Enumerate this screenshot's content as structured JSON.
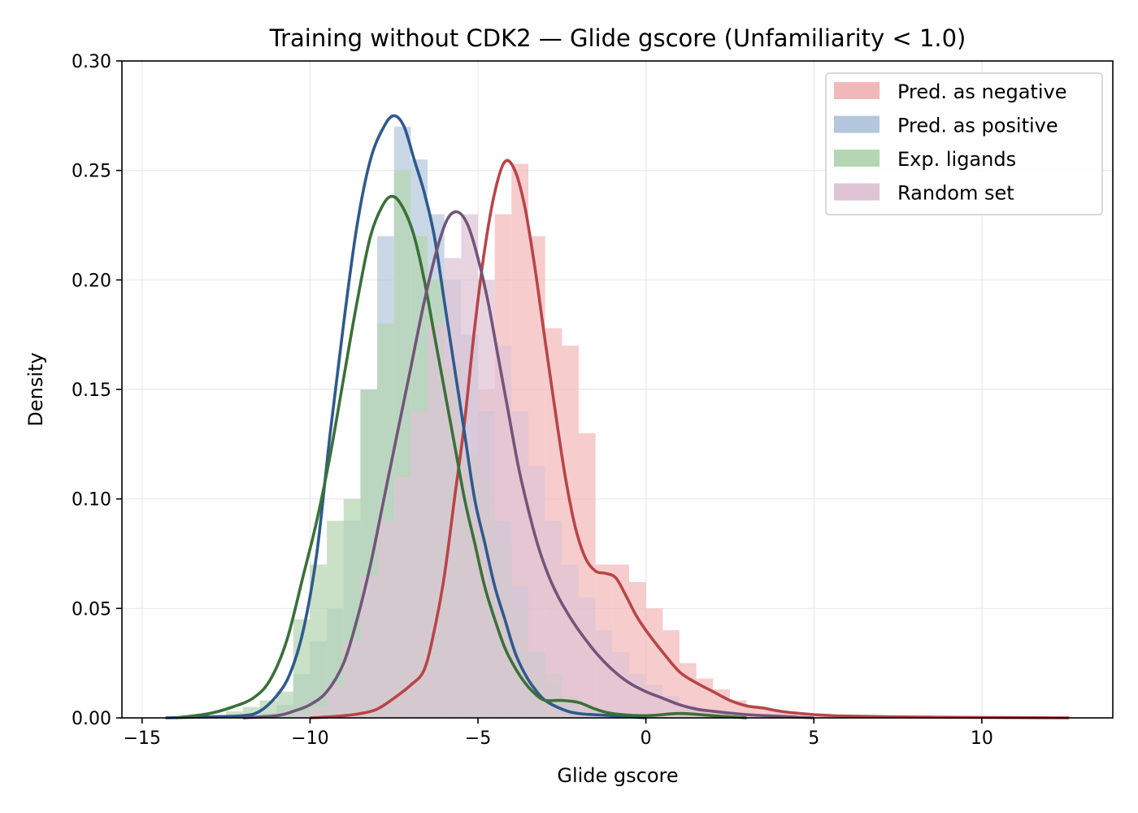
{
  "chart_data": {
    "type": "histogram+kde",
    "title": "Training without CDK2 — Glide gscore (Unfamiliarity < 1.0)",
    "xlabel": "Glide gscore",
    "ylabel": "Density",
    "xlim": [
      -15.6,
      13.9
    ],
    "ylim": [
      0,
      0.3
    ],
    "xticks": [
      -15,
      -10,
      -5,
      0,
      5,
      10
    ],
    "xtick_labels": [
      "−15",
      "−10",
      "−5",
      "0",
      "5",
      "10"
    ],
    "yticks": [
      0,
      0.05,
      0.1,
      0.15,
      0.2,
      0.25,
      0.3
    ],
    "ytick_labels": [
      "0.00",
      "0.05",
      "0.10",
      "0.15",
      "0.20",
      "0.25",
      "0.30"
    ],
    "grid": true,
    "legend_position": "top-right",
    "series": [
      {
        "name": "Pred. as negative",
        "hist_color": "#f2b8b9",
        "kde_color": "#b84548",
        "bin_width": 0.5,
        "hist": [
          [
            -8.5,
            0.001
          ],
          [
            -8.0,
            0.003
          ],
          [
            -7.5,
            0.008
          ],
          [
            -7.0,
            0.012
          ],
          [
            -6.5,
            0.02
          ],
          [
            -6.0,
            0.045
          ],
          [
            -5.5,
            0.09
          ],
          [
            -5.0,
            0.15
          ],
          [
            -4.5,
            0.23
          ],
          [
            -4.0,
            0.253
          ],
          [
            -3.5,
            0.22
          ],
          [
            -3.0,
            0.178
          ],
          [
            -2.5,
            0.17
          ],
          [
            -2.0,
            0.13
          ],
          [
            -1.5,
            0.07
          ],
          [
            -1.0,
            0.07
          ],
          [
            -0.5,
            0.062
          ],
          [
            0.0,
            0.05
          ],
          [
            0.5,
            0.04
          ],
          [
            1.0,
            0.025
          ],
          [
            1.5,
            0.018
          ],
          [
            2.0,
            0.013
          ],
          [
            2.5,
            0.008
          ],
          [
            3.0,
            0.005
          ],
          [
            3.5,
            0.004
          ],
          [
            4.0,
            0.003
          ],
          [
            5.0,
            0.002
          ],
          [
            6.0,
            0.001
          ],
          [
            8.0,
            0.0005
          ],
          [
            10.0,
            0.0003
          ]
        ],
        "kde": [
          [
            -10,
            0
          ],
          [
            -9.5,
            0.0004
          ],
          [
            -9,
            0.001
          ],
          [
            -8.5,
            0.002
          ],
          [
            -8,
            0.004
          ],
          [
            -7.5,
            0.009
          ],
          [
            -7,
            0.015
          ],
          [
            -6.6,
            0.022
          ],
          [
            -6.3,
            0.04
          ],
          [
            -6,
            0.065
          ],
          [
            -5.7,
            0.1
          ],
          [
            -5.4,
            0.135
          ],
          [
            -5.1,
            0.178
          ],
          [
            -4.8,
            0.214
          ],
          [
            -4.5,
            0.24
          ],
          [
            -4.2,
            0.254
          ],
          [
            -3.9,
            0.25
          ],
          [
            -3.6,
            0.233
          ],
          [
            -3.3,
            0.205
          ],
          [
            -3,
            0.172
          ],
          [
            -2.7,
            0.14
          ],
          [
            -2.4,
            0.11
          ],
          [
            -2.1,
            0.087
          ],
          [
            -1.8,
            0.073
          ],
          [
            -1.5,
            0.067
          ],
          [
            -1.2,
            0.066
          ],
          [
            -0.9,
            0.064
          ],
          [
            -0.6,
            0.056
          ],
          [
            -0.3,
            0.047
          ],
          [
            0,
            0.04
          ],
          [
            0.5,
            0.03
          ],
          [
            1,
            0.021
          ],
          [
            1.5,
            0.016
          ],
          [
            2,
            0.012
          ],
          [
            2.5,
            0.008
          ],
          [
            3,
            0.0055
          ],
          [
            3.5,
            0.0045
          ],
          [
            4,
            0.003
          ],
          [
            5,
            0.0015
          ],
          [
            6,
            0.0008
          ],
          [
            8,
            0.0004
          ],
          [
            10,
            0.0002
          ],
          [
            12.6,
            0
          ]
        ]
      },
      {
        "name": "Pred. as positive",
        "hist_color": "#b4c7dc",
        "kde_color": "#2e5a8e",
        "bin_width": 0.5,
        "hist": [
          [
            -11.5,
            0.002
          ],
          [
            -11.0,
            0.006
          ],
          [
            -10.5,
            0.02
          ],
          [
            -10.0,
            0.035
          ],
          [
            -9.5,
            0.05
          ],
          [
            -9.0,
            0.09
          ],
          [
            -8.5,
            0.15
          ],
          [
            -8.0,
            0.22
          ],
          [
            -7.5,
            0.27
          ],
          [
            -7.0,
            0.255
          ],
          [
            -6.5,
            0.23
          ],
          [
            -6.0,
            0.2
          ],
          [
            -5.5,
            0.175
          ],
          [
            -5.0,
            0.14
          ],
          [
            -4.5,
            0.09
          ],
          [
            -4.0,
            0.06
          ],
          [
            -3.5,
            0.03
          ],
          [
            -3.0,
            0.015
          ],
          [
            -2.5,
            0.007
          ],
          [
            -2.0,
            0.003
          ]
        ],
        "kde": [
          [
            -14.3,
            0
          ],
          [
            -13,
            0.0005
          ],
          [
            -12,
            0.001
          ],
          [
            -11.5,
            0.003
          ],
          [
            -11,
            0.01
          ],
          [
            -10.6,
            0.02
          ],
          [
            -10.2,
            0.04
          ],
          [
            -9.8,
            0.075
          ],
          [
            -9.4,
            0.13
          ],
          [
            -9,
            0.18
          ],
          [
            -8.6,
            0.225
          ],
          [
            -8.2,
            0.255
          ],
          [
            -7.8,
            0.27
          ],
          [
            -7.5,
            0.275
          ],
          [
            -7.2,
            0.27
          ],
          [
            -6.9,
            0.255
          ],
          [
            -6.6,
            0.24
          ],
          [
            -6.3,
            0.22
          ],
          [
            -6,
            0.19
          ],
          [
            -5.7,
            0.16
          ],
          [
            -5.4,
            0.13
          ],
          [
            -5.1,
            0.1
          ],
          [
            -4.8,
            0.08
          ],
          [
            -4.5,
            0.06
          ],
          [
            -4.2,
            0.045
          ],
          [
            -3.9,
            0.03
          ],
          [
            -3.6,
            0.02
          ],
          [
            -3.3,
            0.013
          ],
          [
            -3,
            0.008
          ],
          [
            -2.5,
            0.004
          ],
          [
            -2,
            0.002
          ],
          [
            -1,
            0.001
          ],
          [
            0,
            0
          ]
        ]
      },
      {
        "name": "Exp. ligands",
        "hist_color": "#b5d6b2",
        "kde_color": "#3b7038",
        "bin_width": 0.5,
        "hist": [
          [
            -12.5,
            0.003
          ],
          [
            -12.0,
            0.005
          ],
          [
            -11.5,
            0.008
          ],
          [
            -11.0,
            0.012
          ],
          [
            -10.5,
            0.045
          ],
          [
            -10.0,
            0.07
          ],
          [
            -9.5,
            0.09
          ],
          [
            -9.0,
            0.1
          ],
          [
            -8.5,
            0.15
          ],
          [
            -8.0,
            0.18
          ],
          [
            -7.5,
            0.25
          ],
          [
            -7.0,
            0.22
          ],
          [
            -6.5,
            0.2
          ],
          [
            -6.0,
            0.16
          ],
          [
            -5.5,
            0.12
          ],
          [
            -5.0,
            0.11
          ],
          [
            -4.5,
            0.08
          ],
          [
            -4.0,
            0.05
          ],
          [
            -3.5,
            0.03
          ],
          [
            -3.0,
            0.02
          ],
          [
            -2.5,
            0.01
          ],
          [
            -2.0,
            0.005
          ],
          [
            -1.5,
            0.003
          ],
          [
            1.0,
            0.002
          ]
        ],
        "kde": [
          [
            -14,
            0
          ],
          [
            -13,
            0.002
          ],
          [
            -12.3,
            0.005
          ],
          [
            -11.7,
            0.009
          ],
          [
            -11.2,
            0.017
          ],
          [
            -10.7,
            0.035
          ],
          [
            -10.2,
            0.065
          ],
          [
            -9.8,
            0.09
          ],
          [
            -9.4,
            0.12
          ],
          [
            -9,
            0.155
          ],
          [
            -8.6,
            0.19
          ],
          [
            -8.2,
            0.22
          ],
          [
            -7.8,
            0.235
          ],
          [
            -7.5,
            0.238
          ],
          [
            -7.2,
            0.232
          ],
          [
            -6.9,
            0.22
          ],
          [
            -6.6,
            0.2
          ],
          [
            -6.3,
            0.175
          ],
          [
            -6,
            0.15
          ],
          [
            -5.7,
            0.125
          ],
          [
            -5.4,
            0.1
          ],
          [
            -5.1,
            0.08
          ],
          [
            -4.8,
            0.06
          ],
          [
            -4.5,
            0.045
          ],
          [
            -4.2,
            0.032
          ],
          [
            -3.9,
            0.023
          ],
          [
            -3.6,
            0.016
          ],
          [
            -3.3,
            0.011
          ],
          [
            -3,
            0.008
          ],
          [
            -2.5,
            0.008
          ],
          [
            -2,
            0.007
          ],
          [
            -1.5,
            0.004
          ],
          [
            -1,
            0.002
          ],
          [
            0,
            0.001
          ],
          [
            1,
            0.002
          ],
          [
            2,
            0.001
          ],
          [
            3,
            0
          ]
        ]
      },
      {
        "name": "Random set",
        "hist_color": "#dfc3d6",
        "kde_color": "#73557a",
        "bin_width": 0.5,
        "hist": [
          [
            -10.5,
            0.002
          ],
          [
            -10.0,
            0.005
          ],
          [
            -9.5,
            0.015
          ],
          [
            -9.0,
            0.035
          ],
          [
            -8.5,
            0.065
          ],
          [
            -8.0,
            0.09
          ],
          [
            -7.5,
            0.11
          ],
          [
            -7.0,
            0.14
          ],
          [
            -6.5,
            0.18
          ],
          [
            -6.0,
            0.21
          ],
          [
            -5.5,
            0.23
          ],
          [
            -5.0,
            0.2
          ],
          [
            -4.5,
            0.17
          ],
          [
            -4.0,
            0.14
          ],
          [
            -3.5,
            0.115
          ],
          [
            -3.0,
            0.09
          ],
          [
            -2.5,
            0.07
          ],
          [
            -2.0,
            0.055
          ],
          [
            -1.5,
            0.04
          ],
          [
            -1.0,
            0.03
          ],
          [
            -0.5,
            0.02
          ],
          [
            0.0,
            0.015
          ],
          [
            0.5,
            0.01
          ],
          [
            1.0,
            0.006
          ],
          [
            1.5,
            0.004
          ],
          [
            2.0,
            0.002
          ]
        ],
        "kde": [
          [
            -12,
            0
          ],
          [
            -11,
            0.001
          ],
          [
            -10.5,
            0.003
          ],
          [
            -10,
            0.006
          ],
          [
            -9.5,
            0.012
          ],
          [
            -9,
            0.025
          ],
          [
            -8.6,
            0.045
          ],
          [
            -8.2,
            0.07
          ],
          [
            -7.8,
            0.1
          ],
          [
            -7.4,
            0.13
          ],
          [
            -7,
            0.16
          ],
          [
            -6.6,
            0.19
          ],
          [
            -6.2,
            0.215
          ],
          [
            -5.9,
            0.228
          ],
          [
            -5.6,
            0.231
          ],
          [
            -5.3,
            0.225
          ],
          [
            -5,
            0.21
          ],
          [
            -4.7,
            0.19
          ],
          [
            -4.4,
            0.165
          ],
          [
            -4.1,
            0.14
          ],
          [
            -3.8,
            0.115
          ],
          [
            -3.5,
            0.095
          ],
          [
            -3.2,
            0.078
          ],
          [
            -2.9,
            0.065
          ],
          [
            -2.6,
            0.055
          ],
          [
            -2.3,
            0.047
          ],
          [
            -2,
            0.04
          ],
          [
            -1.5,
            0.03
          ],
          [
            -1,
            0.022
          ],
          [
            -0.5,
            0.016
          ],
          [
            0,
            0.012
          ],
          [
            0.5,
            0.009
          ],
          [
            1,
            0.006
          ],
          [
            1.5,
            0.004
          ],
          [
            2,
            0.003
          ],
          [
            3,
            0.0015
          ],
          [
            4,
            0.0007
          ],
          [
            5,
            0
          ]
        ]
      }
    ]
  }
}
